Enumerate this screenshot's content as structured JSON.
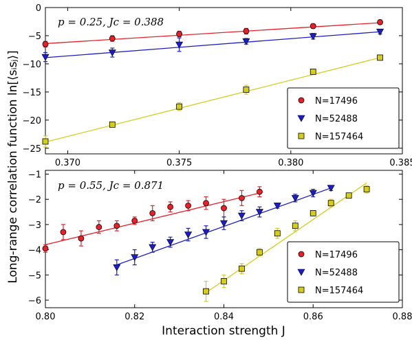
{
  "figure": {
    "ylabel": "Long-range correlation function ln[⟨sᵢsⱼ⟩]",
    "xlabel": "Interaction strength J"
  },
  "chart_data": [
    {
      "type": "scatter",
      "annotation": "p = 0.25, Jc = 0.388",
      "xlim": [
        0.369,
        0.385
      ],
      "ylim": [
        -26,
        0
      ],
      "xticks": [
        "0.370",
        "0.375",
        "0.380",
        "0.385"
      ],
      "yticks": [
        "0",
        "−5",
        "−10",
        "−15",
        "−20",
        "−25"
      ],
      "legend_position": "lower-right",
      "series": [
        {
          "name": "N=17496",
          "color": "#e8202a",
          "marker": "circle",
          "x": [
            0.369,
            0.372,
            0.375,
            0.378,
            0.381,
            0.384
          ],
          "y": [
            -6.5,
            -5.5,
            -4.7,
            -4.2,
            -3.3,
            -2.6
          ],
          "err": [
            0.5,
            0.5,
            0.5,
            0.5,
            0.4,
            0.4
          ],
          "fit": [
            [
              0.369,
              -6.4
            ],
            [
              0.384,
              -2.7
            ]
          ]
        },
        {
          "name": "N=52488",
          "color": "#1c1cc8",
          "marker": "triangle-down",
          "x": [
            0.369,
            0.372,
            0.375,
            0.378,
            0.381,
            0.384
          ],
          "y": [
            -8.8,
            -8.0,
            -6.6,
            -6.0,
            -5.1,
            -4.3
          ],
          "err": [
            0.8,
            0.8,
            1.2,
            0.5,
            0.5,
            0.4
          ],
          "fit": [
            [
              0.369,
              -8.9
            ],
            [
              0.384,
              -4.3
            ]
          ]
        },
        {
          "name": "N=157464",
          "color": "#d4cc1e",
          "marker": "square",
          "x": [
            0.369,
            0.372,
            0.375,
            0.378,
            0.381,
            0.384
          ],
          "y": [
            -23.8,
            -20.8,
            -17.6,
            -14.6,
            -11.4,
            -8.9
          ],
          "err": [
            1.0,
            0.4,
            0.7,
            0.8,
            0.3,
            0.3
          ],
          "fit": [
            [
              0.369,
              -23.9
            ],
            [
              0.384,
              -8.9
            ]
          ]
        }
      ]
    },
    {
      "type": "scatter",
      "annotation": "p = 0.55, Jc = 0.871",
      "xlim": [
        0.8,
        0.88
      ],
      "ylim": [
        -6.3,
        -0.85
      ],
      "xticks": [
        "0.80",
        "0.82",
        "0.84",
        "0.86",
        "0.88"
      ],
      "yticks": [
        "−1",
        "−2",
        "−3",
        "−4",
        "−5",
        "−6"
      ],
      "legend_position": "lower-right",
      "series": [
        {
          "name": "N=17496",
          "color": "#e8202a",
          "marker": "circle",
          "x": [
            0.8,
            0.804,
            0.808,
            0.812,
            0.816,
            0.82,
            0.824,
            0.828,
            0.832,
            0.836,
            0.84,
            0.844,
            0.848
          ],
          "y": [
            -3.95,
            -3.3,
            -3.55,
            -3.1,
            -3.05,
            -2.85,
            -2.55,
            -2.3,
            -2.25,
            -2.15,
            -2.35,
            -1.95,
            -1.7
          ],
          "err": [
            0.15,
            0.3,
            0.3,
            0.25,
            0.2,
            0.15,
            0.3,
            0.2,
            0.2,
            0.25,
            0.35,
            0.3,
            0.2
          ],
          "fit": [
            [
              0.8,
              -3.8
            ],
            [
              0.848,
              -1.75
            ]
          ]
        },
        {
          "name": "N=52488",
          "color": "#1c1cc8",
          "marker": "triangle-down",
          "x": [
            0.816,
            0.82,
            0.824,
            0.828,
            0.832,
            0.836,
            0.84,
            0.844,
            0.848,
            0.852,
            0.856,
            0.86,
            0.864
          ],
          "y": [
            -4.7,
            -4.3,
            -3.9,
            -3.7,
            -3.4,
            -3.3,
            -2.95,
            -2.65,
            -2.5,
            -2.25,
            -1.95,
            -1.75,
            -1.55
          ],
          "err": [
            0.3,
            0.3,
            0.2,
            0.2,
            0.25,
            0.25,
            0.25,
            0.2,
            0.2,
            0.1,
            0.15,
            0.15,
            0.1
          ],
          "fit": [
            [
              0.816,
              -4.6
            ],
            [
              0.864,
              -1.55
            ]
          ]
        },
        {
          "name": "N=157464",
          "color": "#d4cc1e",
          "marker": "square",
          "x": [
            0.836,
            0.84,
            0.844,
            0.848,
            0.852,
            0.856,
            0.86,
            0.864,
            0.868,
            0.872
          ],
          "y": [
            -5.65,
            -5.25,
            -4.75,
            -4.1,
            -3.35,
            -3.05,
            -2.55,
            -2.15,
            -1.85,
            -1.6
          ],
          "err": [
            0.4,
            0.25,
            0.2,
            0.15,
            0.2,
            0.2,
            0.1,
            0.15,
            0.1,
            0.15
          ],
          "fit": [
            [
              0.836,
              -5.7
            ],
            [
              0.872,
              -1.35
            ]
          ]
        }
      ]
    }
  ]
}
